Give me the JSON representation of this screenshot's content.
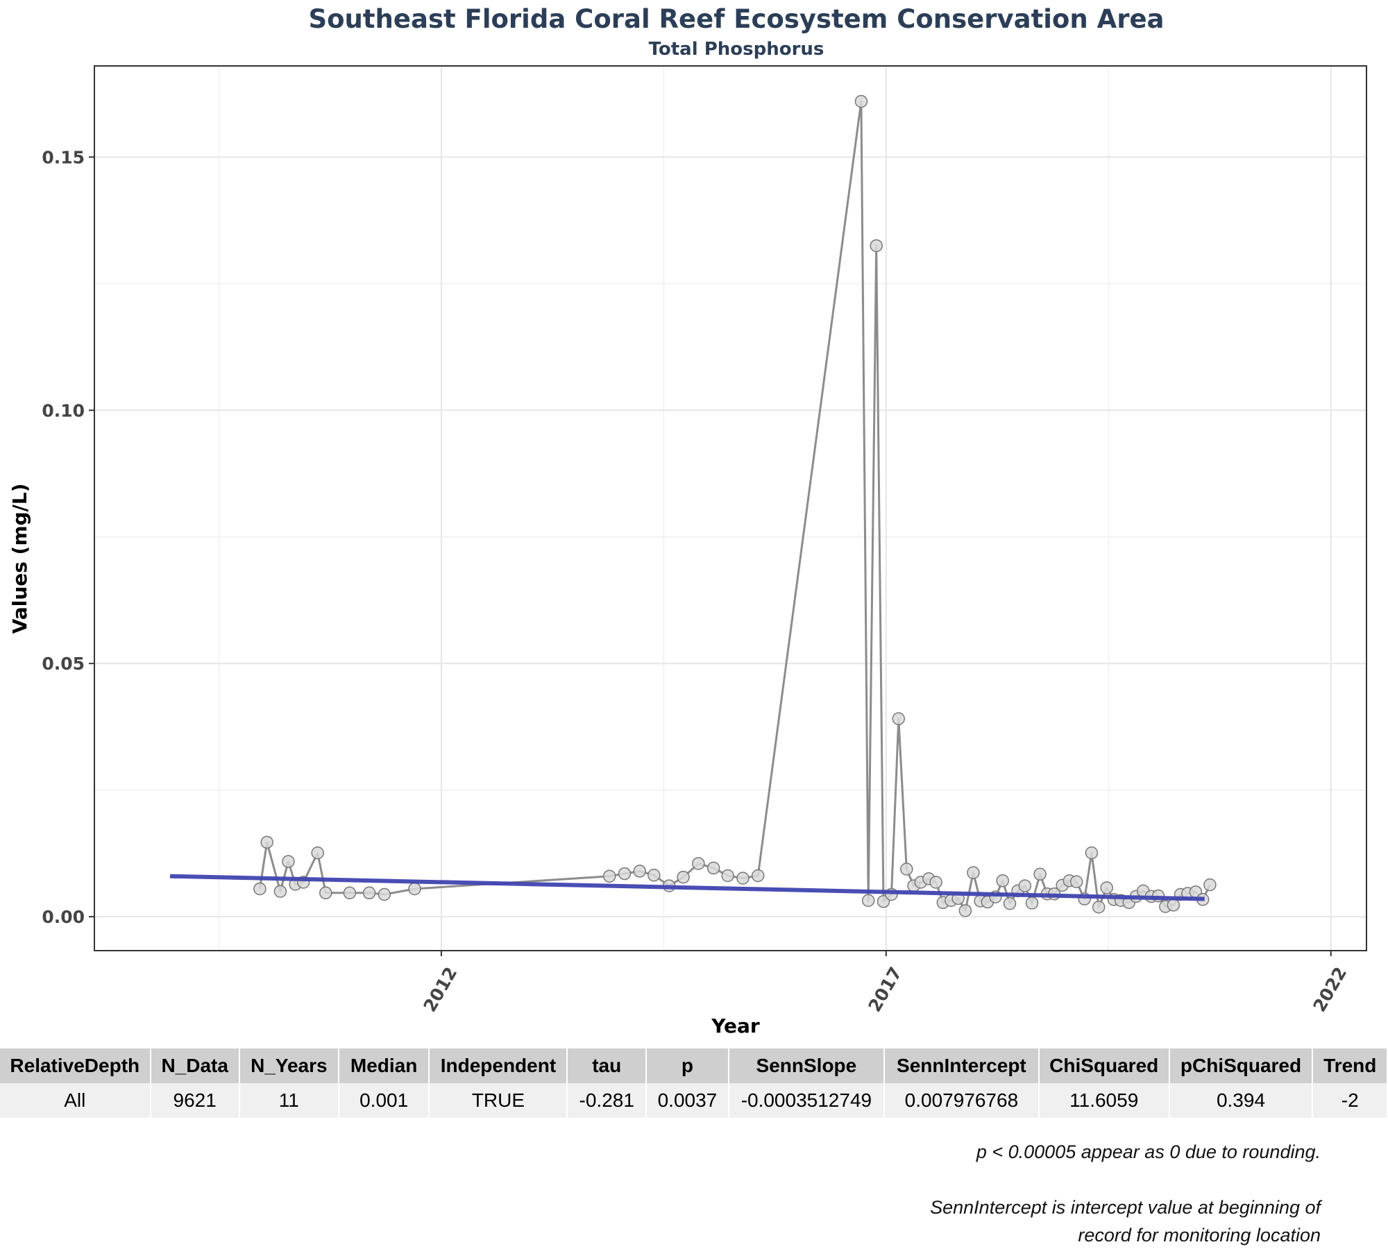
{
  "chart_data": {
    "type": "line",
    "title": "Southeast Florida Coral Reef Ecosystem Conservation Area",
    "subtitle": "Total Phosphorus",
    "xlabel": "Year",
    "ylabel": "Values (mg/L)",
    "xlim": [
      2008.1,
      2022.4
    ],
    "ylim": [
      -0.0067,
      0.168
    ],
    "x_ticks": [
      2012,
      2017,
      2022
    ],
    "y_ticks": [
      0.0,
      0.05,
      0.1,
      0.15
    ],
    "y_tick_labels": [
      "0.00",
      "0.05",
      "0.10",
      "0.15"
    ],
    "grid": true,
    "colors": {
      "series": "#8c8c8c",
      "points": "#d9d9d9",
      "trend": "#3f43b0"
    },
    "series": [
      {
        "values": [
          [
            2009.96,
            0.0055
          ],
          [
            2010.04,
            0.0147
          ],
          [
            2010.19,
            0.005
          ],
          [
            2010.28,
            0.0109
          ],
          [
            2010.36,
            0.0064
          ],
          [
            2010.45,
            0.0068
          ],
          [
            2010.61,
            0.0126
          ],
          [
            2010.7,
            0.0047
          ],
          [
            2010.97,
            0.0047
          ],
          [
            2011.19,
            0.0047
          ],
          [
            2011.36,
            0.0044
          ],
          [
            2011.7,
            0.0055
          ],
          [
            2013.89,
            0.008
          ],
          [
            2014.06,
            0.0085
          ],
          [
            2014.23,
            0.009
          ],
          [
            2014.39,
            0.0082
          ],
          [
            2014.56,
            0.0061
          ],
          [
            2014.72,
            0.0078
          ],
          [
            2014.89,
            0.0105
          ],
          [
            2015.06,
            0.0096
          ],
          [
            2015.22,
            0.0081
          ],
          [
            2015.39,
            0.0076
          ],
          [
            2015.56,
            0.0081
          ],
          [
            2016.72,
            0.161
          ],
          [
            2016.8,
            0.0032
          ],
          [
            2016.89,
            0.1325
          ],
          [
            2016.97,
            0.003
          ],
          [
            2017.06,
            0.0044
          ],
          [
            2017.14,
            0.0391
          ],
          [
            2017.23,
            0.0094
          ],
          [
            2017.31,
            0.0061
          ],
          [
            2017.39,
            0.0068
          ],
          [
            2017.48,
            0.0075
          ],
          [
            2017.56,
            0.0068
          ],
          [
            2017.64,
            0.0028
          ],
          [
            2017.73,
            0.0032
          ],
          [
            2017.81,
            0.0036
          ],
          [
            2017.89,
            0.0012
          ],
          [
            2017.98,
            0.0087
          ],
          [
            2018.06,
            0.0031
          ],
          [
            2018.14,
            0.0029
          ],
          [
            2018.23,
            0.0039
          ],
          [
            2018.31,
            0.0071
          ],
          [
            2018.39,
            0.0026
          ],
          [
            2018.48,
            0.0051
          ],
          [
            2018.56,
            0.0061
          ],
          [
            2018.64,
            0.0027
          ],
          [
            2018.73,
            0.0084
          ],
          [
            2018.81,
            0.0045
          ],
          [
            2018.89,
            0.0045
          ],
          [
            2018.98,
            0.0062
          ],
          [
            2019.06,
            0.0071
          ],
          [
            2019.14,
            0.0069
          ],
          [
            2019.23,
            0.0035
          ],
          [
            2019.31,
            0.0126
          ],
          [
            2019.39,
            0.0019
          ],
          [
            2019.48,
            0.0057
          ],
          [
            2019.56,
            0.0034
          ],
          [
            2019.64,
            0.0032
          ],
          [
            2019.73,
            0.0028
          ],
          [
            2019.81,
            0.004
          ],
          [
            2019.89,
            0.0051
          ],
          [
            2019.98,
            0.004
          ],
          [
            2020.06,
            0.0041
          ],
          [
            2020.14,
            0.002
          ],
          [
            2020.23,
            0.0023
          ],
          [
            2020.31,
            0.0044
          ],
          [
            2020.39,
            0.0046
          ],
          [
            2020.48,
            0.0049
          ],
          [
            2020.56,
            0.0034
          ],
          [
            2020.64,
            0.0063
          ]
        ]
      }
    ],
    "trend_line": {
      "x": [
        2008.95,
        2020.58
      ],
      "y": [
        0.008,
        0.0035
      ]
    }
  },
  "table": {
    "headers": [
      "RelativeDepth",
      "N_Data",
      "N_Years",
      "Median",
      "Independent",
      "tau",
      "p",
      "SennSlope",
      "SennIntercept",
      "ChiSquared",
      "pChiSquared",
      "Trend"
    ],
    "rows": [
      [
        "All",
        "9621",
        "11",
        "0.001",
        "TRUE",
        "-0.281",
        "0.0037",
        "-0.0003512749",
        "0.007976768",
        "11.6059",
        "0.394",
        "-2"
      ]
    ]
  },
  "footnotes": {
    "rounding": "p < 0.00005 appear as 0 due to rounding.",
    "intercept_line1": "SennIntercept is intercept value at beginning of",
    "intercept_line2": "record for monitoring location"
  }
}
